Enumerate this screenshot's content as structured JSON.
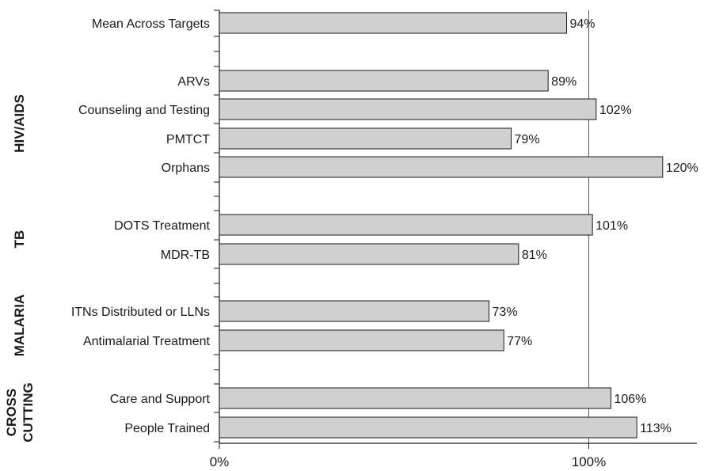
{
  "chart_data": {
    "type": "bar",
    "orientation": "horizontal",
    "title": "",
    "xlabel": "",
    "ylabel": "",
    "xlim": [
      0,
      128
    ],
    "x_ticks": [
      {
        "value": 0,
        "label": "0%"
      },
      {
        "value": 100,
        "label": "100%"
      }
    ],
    "reference_line": 100,
    "grid": false,
    "bar_color": "#d0d0d0",
    "categories": [
      "Mean Across Targets",
      "ARVs",
      "Counseling and Testing",
      "PMTCT",
      "Orphans",
      "DOTS Treatment",
      "MDR-TB",
      "ITNs Distributed or LLNs",
      "Antimalarial Treatment",
      "Care and Support",
      "People Trained"
    ],
    "values": [
      94,
      89,
      102,
      79,
      120,
      101,
      81,
      73,
      77,
      106,
      113
    ],
    "value_labels": [
      "94%",
      "89%",
      "102%",
      "79%",
      "120%",
      "101%",
      "81%",
      "73%",
      "77%",
      "106%",
      "113%"
    ],
    "groups": [
      {
        "label_lines": [
          "HIV/AIDS"
        ],
        "members": [
          "ARVs",
          "Counseling and Testing",
          "PMTCT",
          "Orphans"
        ]
      },
      {
        "label_lines": [
          "TB"
        ],
        "members": [
          "DOTS Treatment",
          "MDR-TB"
        ]
      },
      {
        "label_lines": [
          "MALARIA"
        ],
        "members": [
          "ITNs Distributed or LLNs",
          "Antimalarial Treatment"
        ]
      },
      {
        "label_lines": [
          "CROSS",
          "CUTTING"
        ],
        "members": [
          "Care and Support",
          "People Trained"
        ]
      }
    ]
  }
}
